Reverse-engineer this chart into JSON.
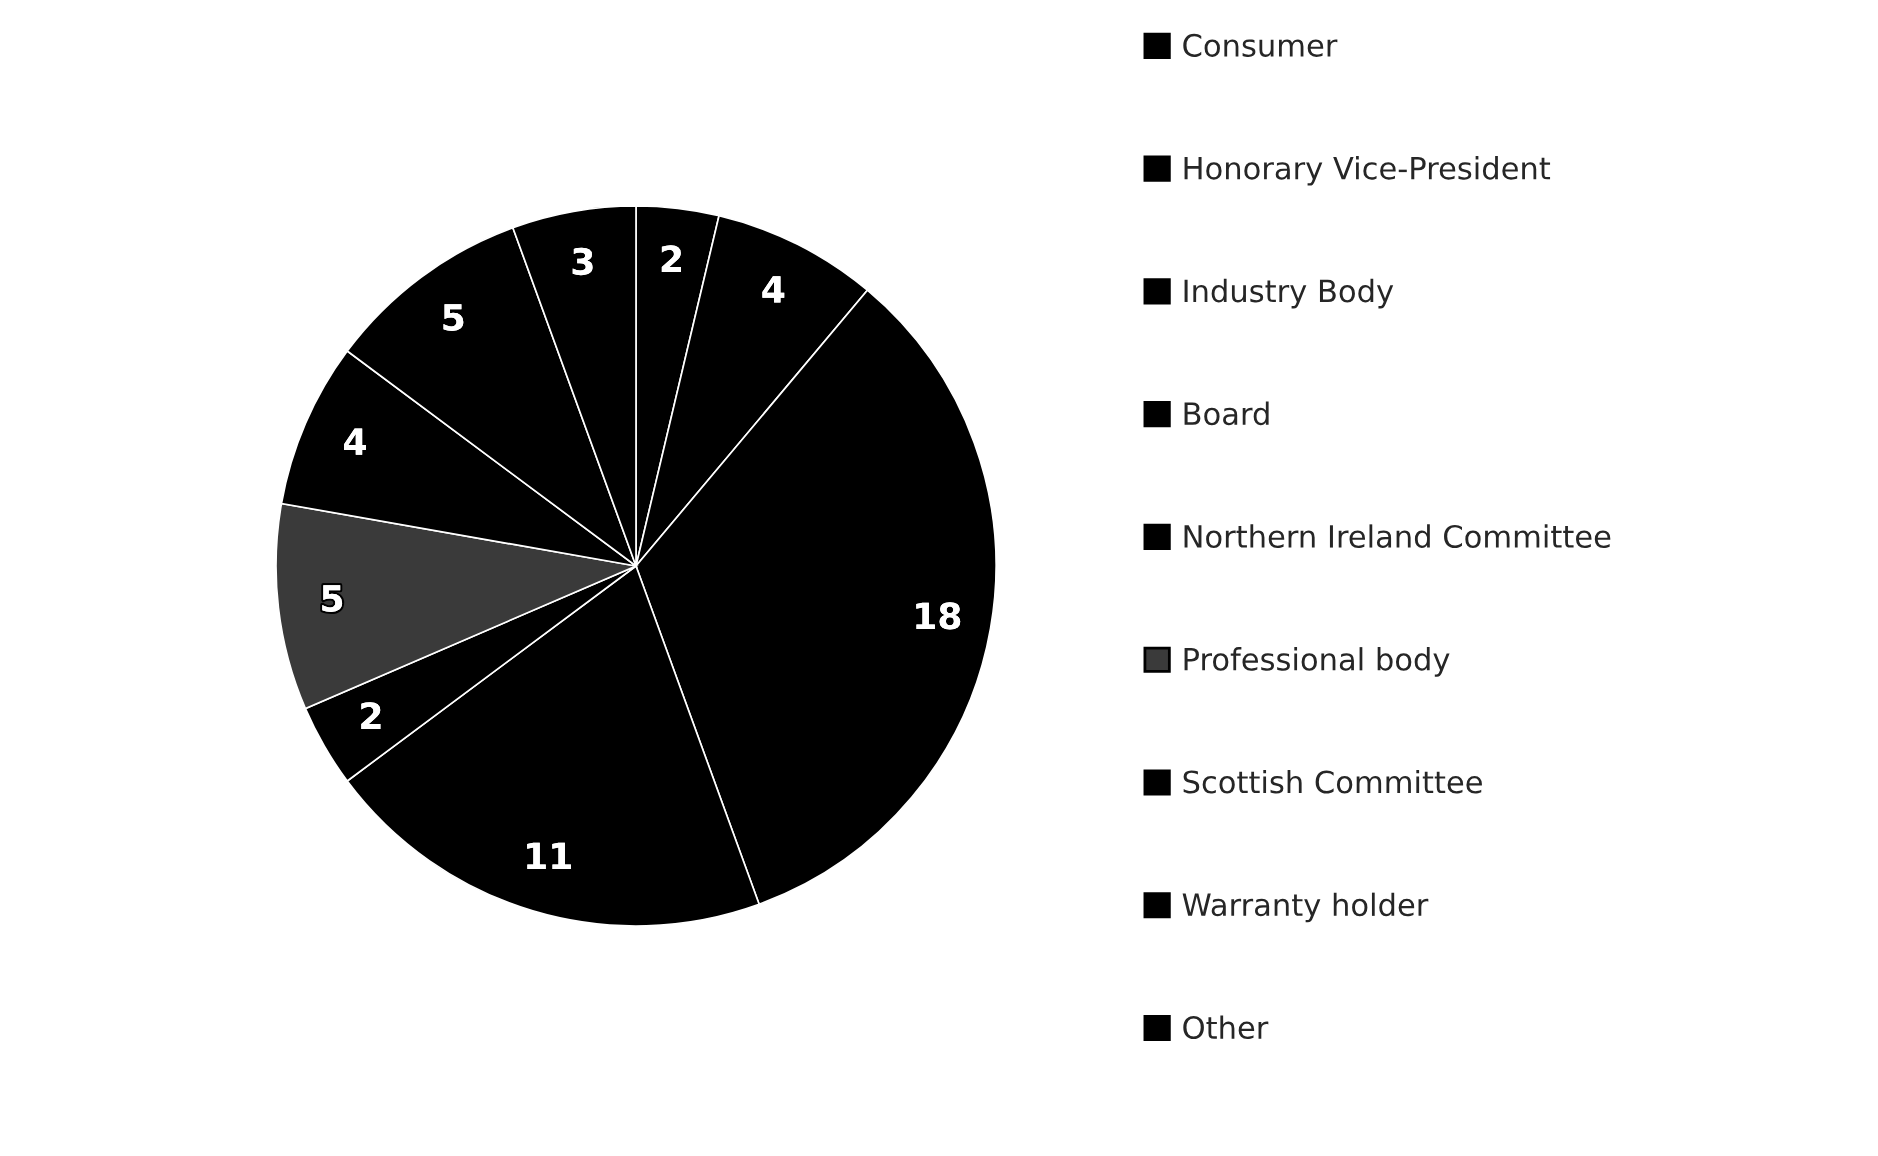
{
  "chart_data": {
    "type": "pie",
    "categories": [
      "Consumer",
      "Honorary Vice-President",
      "Industry Body",
      "Board",
      "Northern Ireland Committee",
      "Professional body",
      "Scottish Committee",
      "Warranty holder",
      "Other"
    ],
    "values": [
      2,
      4,
      18,
      11,
      2,
      5,
      4,
      5,
      3
    ],
    "colors": [
      "#000000",
      "#000000",
      "#000000",
      "#000000",
      "#000000",
      "#3a3a3a",
      "#000000",
      "#000000",
      "#000000"
    ],
    "data_labels": true,
    "legend": "right"
  }
}
